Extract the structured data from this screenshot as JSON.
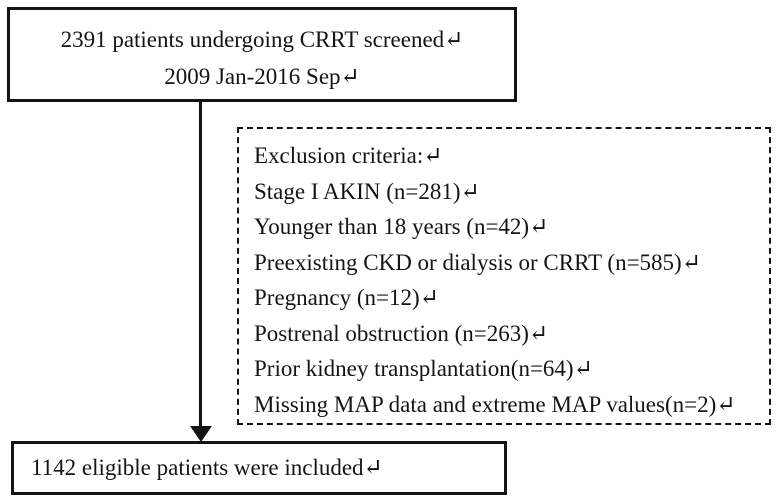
{
  "colors": {
    "ink": "#141414",
    "background": "#ffffff"
  },
  "top_box": {
    "lines": [
      "2391 patients undergoing CRRT screened↵",
      "2009 Jan-2016 Sep↵"
    ]
  },
  "exclusion_box": {
    "title": "Exclusion criteria:↵",
    "items": [
      "Stage I AKIN (n=281)↵",
      "Younger than 18 years (n=42)↵",
      "Preexisting CKD or dialysis or CRRT (n=585)↵",
      "Pregnancy (n=12)↵",
      "Postrenal obstruction (n=263)↵",
      "Prior kidney transplantation(n=64)↵",
      "Missing MAP data and extreme MAP values(n=2)↵"
    ]
  },
  "bottom_box": {
    "text": "1142 eligible patients were included↵"
  }
}
